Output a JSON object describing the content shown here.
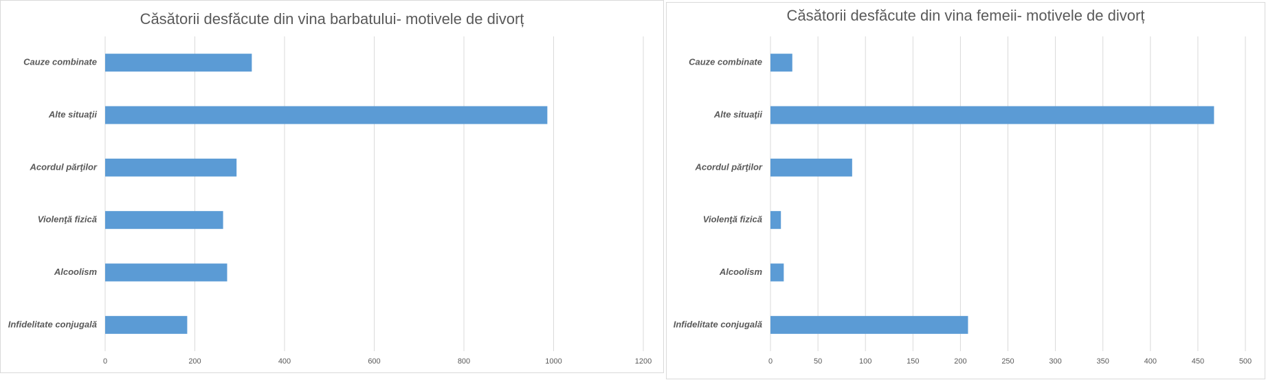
{
  "chart_data": [
    {
      "type": "bar",
      "orientation": "horizontal",
      "title": "Căsătorii desfăcute din vina barbatului- motivele de divorț",
      "categories": [
        "Cauze combinate",
        "Alte situaţii",
        "Acordul părţilor",
        "Violenţă fizică",
        "Alcoolism",
        "Infidelitate conjugală"
      ],
      "values": [
        327,
        986,
        293,
        263,
        272,
        183
      ],
      "color": "#5b9bd5",
      "xlim": [
        0,
        1200
      ],
      "xticks": [
        0,
        200,
        400,
        600,
        800,
        1000,
        1200
      ],
      "grid": true
    },
    {
      "type": "bar",
      "orientation": "horizontal",
      "title": "Căsătorii desfăcute din vina femeii- motivele de divorț",
      "categories": [
        "Cauze combinate",
        "Alte situaţii",
        "Acordul părţilor",
        "Violenţă fizică",
        "Alcoolism",
        "Infidelitate conjugală"
      ],
      "values": [
        23,
        467,
        86,
        11,
        14,
        208
      ],
      "color": "#5b9bd5",
      "xlim": [
        0,
        500
      ],
      "xticks": [
        0,
        50,
        100,
        150,
        200,
        250,
        300,
        350,
        400,
        450,
        500
      ],
      "grid": true
    }
  ]
}
